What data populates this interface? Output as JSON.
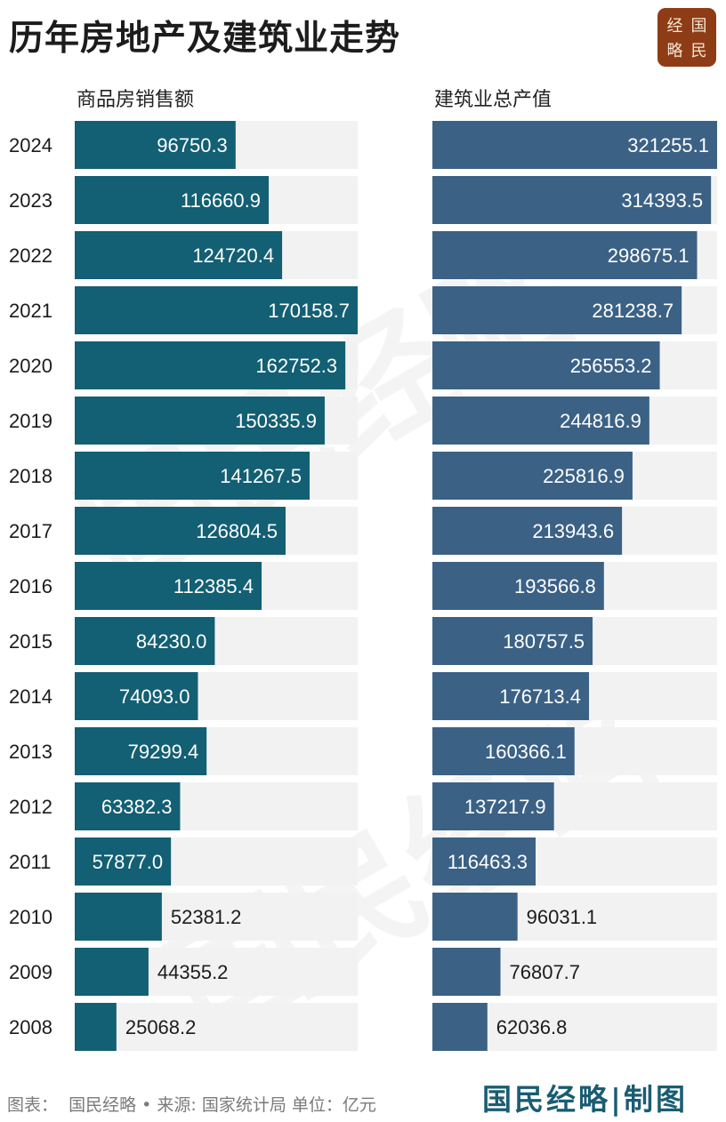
{
  "title": "历年房地产及建筑业走势",
  "seal": {
    "chars": [
      "经",
      "国",
      "略",
      "民"
    ]
  },
  "watermark": {
    "text": "国民经略"
  },
  "footer": {
    "source_label": "图表：",
    "source_text": "国民经略 • 来源: 国家统计局 单位：亿元",
    "brand": "国民经略|制图"
  },
  "colors": {
    "left_bar": "#135f73",
    "right_bar": "#3b6185",
    "track": "#f2f2f2",
    "seal": "#8e3c16"
  },
  "chart_data": [
    {
      "type": "bar",
      "orientation": "horizontal",
      "title": "商品房销售额",
      "categories": [
        "2024",
        "2023",
        "2022",
        "2021",
        "2020",
        "2019",
        "2018",
        "2017",
        "2016",
        "2015",
        "2014",
        "2013",
        "2012",
        "2011",
        "2010",
        "2009",
        "2008"
      ],
      "values": [
        96750.3,
        116660.9,
        124720.4,
        170158.7,
        162752.3,
        150335.9,
        141267.5,
        126804.5,
        112385.4,
        84230.0,
        74093.0,
        79299.4,
        63382.3,
        57877.0,
        52381.2,
        44355.2,
        25068.2
      ],
      "labels": [
        "96750.3",
        "116660.9",
        "124720.4",
        "170158.7",
        "162752.3",
        "150335.9",
        "141267.5",
        "126804.5",
        "112385.4",
        "84230.0",
        "74093.0",
        "79299.4",
        "63382.3",
        "57877.0",
        "52381.2",
        "44355.2",
        "25068.2"
      ],
      "xlim": [
        0,
        170158.7
      ]
    },
    {
      "type": "bar",
      "orientation": "horizontal",
      "title": "建筑业总产值",
      "categories": [
        "2024",
        "2023",
        "2022",
        "2021",
        "2020",
        "2019",
        "2018",
        "2017",
        "2016",
        "2015",
        "2014",
        "2013",
        "2012",
        "2011",
        "2010",
        "2009",
        "2008"
      ],
      "values": [
        321255.1,
        314393.5,
        298675.1,
        281238.7,
        256553.2,
        244816.9,
        225816.9,
        213943.6,
        193566.8,
        180757.5,
        176713.4,
        160366.1,
        137217.9,
        116463.3,
        96031.1,
        76807.7,
        62036.8
      ],
      "labels": [
        "321255.1",
        "314393.5",
        "298675.1",
        "281238.7",
        "256553.2",
        "244816.9",
        "225816.9",
        "213943.6",
        "193566.8",
        "180757.5",
        "176713.4",
        "160366.1",
        "137217.9",
        "116463.3",
        "96031.1",
        "76807.7",
        "62036.8"
      ],
      "xlim": [
        0,
        321255.1
      ]
    }
  ]
}
